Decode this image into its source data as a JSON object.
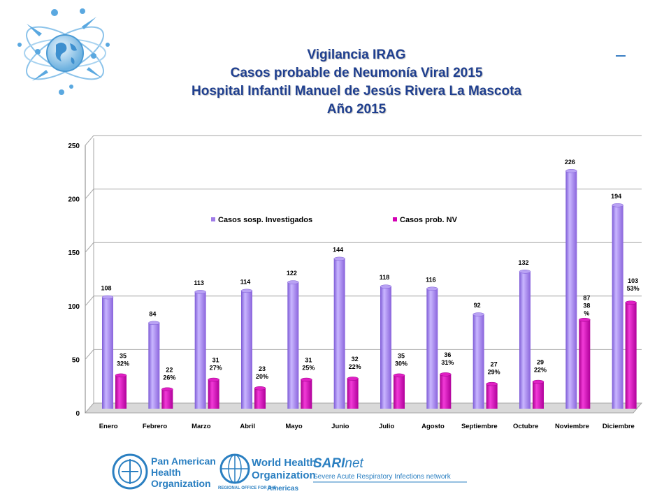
{
  "header": {
    "title_lines": [
      "Vigilancia IRAG",
      "Casos probable de Neumonía Viral 2015",
      "Hospital Infantil Manuel de Jesús Rivera La Mascota",
      "Año 2015"
    ]
  },
  "chart_data": {
    "type": "bar",
    "categories": [
      "Enero",
      "Febrero",
      "Marzo",
      "Abril",
      "Mayo",
      "Junio",
      "Julio",
      "Agosto",
      "Septiembre",
      "Octubre",
      "Noviembre",
      "Diciembre"
    ],
    "series": [
      {
        "name": "Casos sosp. Investigados",
        "color": "#a07ce8",
        "values": [
          108,
          84,
          113,
          114,
          122,
          144,
          118,
          116,
          92,
          132,
          226,
          194
        ]
      },
      {
        "name": "Casos prob. NV",
        "color": "#d400b4",
        "values": [
          35,
          22,
          31,
          23,
          31,
          32,
          35,
          36,
          27,
          29,
          87,
          103
        ],
        "percent_labels": [
          "32%",
          "26%",
          "27%",
          "20%",
          "25%",
          "22%",
          "30%",
          "31%",
          "29%",
          "22%",
          "38\n%",
          "53%"
        ]
      }
    ],
    "ylim": [
      0,
      250
    ],
    "yticks": [
      0,
      50,
      100,
      150,
      200,
      250
    ],
    "grid": true,
    "legend": "top-center"
  },
  "footer": {
    "paho": [
      "Pan American",
      "Health",
      "Organization"
    ],
    "who": [
      "World Health",
      "Organization"
    ],
    "who_region": "REGIONAL OFFICE FOR THE",
    "who_region2": "Americas",
    "sari_a": "SARI",
    "sari_b": "net",
    "sari_sub": "Severe Acute Respiratory Infections network"
  },
  "colors": {
    "title": "#1f3f8f",
    "accent": "#2a7fc1"
  },
  "icons": [
    "world-atom-logo",
    "paho-emblem",
    "who-emblem"
  ]
}
